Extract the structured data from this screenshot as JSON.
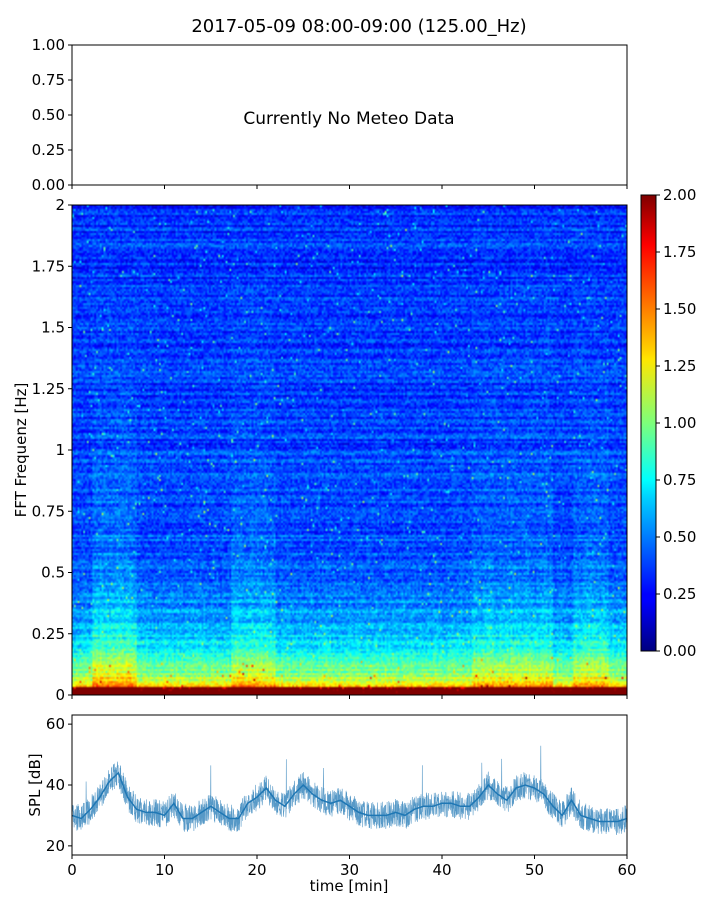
{
  "figure": {
    "title": "2017-05-09 08:00-09:00 (125.00_Hz)"
  },
  "chart_data": [
    {
      "id": "meteo-panel",
      "type": "text",
      "annotation": "Currently No Meteo Data",
      "ylim": [
        0,
        1
      ],
      "yticks": [
        "0.00",
        "0.25",
        "0.50",
        "0.75",
        "1.00"
      ],
      "xticks_count": 7
    },
    {
      "id": "spectrogram",
      "type": "heatmap",
      "ylabel": "FFT Frequenz [Hz]",
      "xlim": [
        0,
        60
      ],
      "ylim": [
        0,
        2
      ],
      "yticks": [
        "0",
        "0.25",
        "0.5",
        "0.75",
        "1",
        "1.25",
        "1.5",
        "1.75",
        "2"
      ],
      "colormap": "jet",
      "colorbar": {
        "vmin": 0,
        "vmax": 2,
        "ticks": [
          "0.00",
          "0.25",
          "0.50",
          "0.75",
          "1.00",
          "1.25",
          "1.50",
          "1.75",
          "2.00"
        ]
      }
    },
    {
      "id": "spl",
      "type": "line",
      "ylabel": "SPL [dB]",
      "xlabel": "time [min]",
      "xlim": [
        0,
        60
      ],
      "ylim": [
        17,
        63
      ],
      "yticks": [
        "20",
        "40",
        "60"
      ],
      "xticks": [
        "0",
        "10",
        "20",
        "30",
        "40",
        "50",
        "60"
      ],
      "color": "#1f77b4",
      "x": [
        0,
        1,
        2,
        3,
        4,
        5,
        6,
        7,
        8,
        9,
        10,
        11,
        12,
        13,
        14,
        15,
        16,
        17,
        18,
        19,
        20,
        21,
        22,
        23,
        24,
        25,
        26,
        27,
        28,
        29,
        30,
        31,
        32,
        33,
        34,
        35,
        36,
        37,
        38,
        39,
        40,
        41,
        42,
        43,
        44,
        45,
        46,
        47,
        48,
        49,
        50,
        51,
        52,
        53,
        54,
        55,
        56,
        57,
        58,
        59,
        60
      ],
      "y": [
        30,
        29,
        32,
        36,
        41,
        44,
        36,
        32,
        31,
        31,
        30,
        34,
        29,
        29,
        31,
        33,
        31,
        29,
        29,
        34,
        36,
        39,
        35,
        33,
        37,
        40,
        37,
        35,
        34,
        35,
        33,
        31,
        30,
        30,
        30,
        31,
        30,
        32,
        33,
        33,
        34,
        34,
        33,
        33,
        36,
        40,
        37,
        35,
        39,
        40,
        39,
        37,
        33,
        30,
        35,
        30,
        29,
        28,
        28,
        28,
        29
      ]
    }
  ]
}
